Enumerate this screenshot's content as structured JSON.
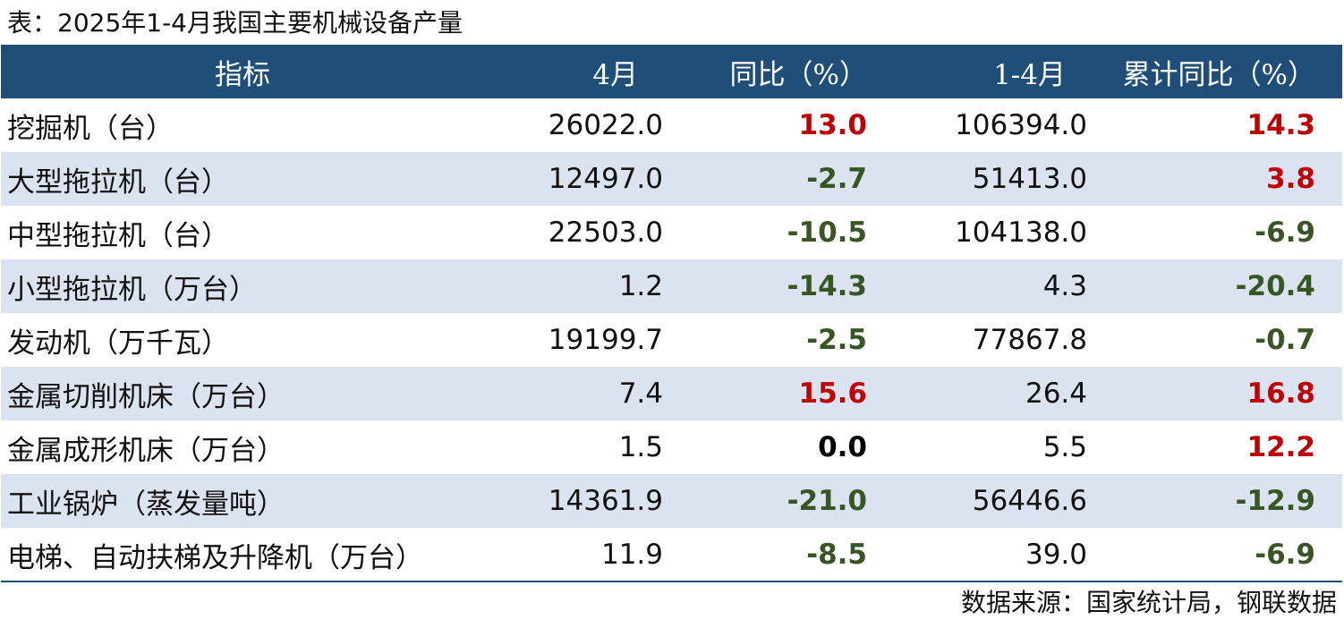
{
  "title": "表：2025年1-4月我国主要机械设备产量",
  "colors": {
    "header_bg": "#1f4e79",
    "header_text": "#ffffff",
    "row_alt_bg": "#dae3ef",
    "positive": "#c00000",
    "negative": "#375623",
    "zero": "#000000"
  },
  "chart_data": {
    "type": "table",
    "title": "表：2025年1-4月我国主要机械设备产量",
    "columns": [
      "指标",
      "4月",
      "同比（%）",
      "1-4月",
      "累计同比（%）"
    ],
    "rows": [
      {
        "name": "挖掘机（台）",
        "april": "26022.0",
        "yoy": "13.0",
        "ytd": "106394.0",
        "ytd_yoy": "14.3",
        "yoy_tone": "positive",
        "ytd_yoy_tone": "positive"
      },
      {
        "name": "大型拖拉机（台）",
        "april": "12497.0",
        "yoy": "-2.7",
        "ytd": "51413.0",
        "ytd_yoy": "3.8",
        "yoy_tone": "negative",
        "ytd_yoy_tone": "positive"
      },
      {
        "name": "中型拖拉机（台）",
        "april": "22503.0",
        "yoy": "-10.5",
        "ytd": "104138.0",
        "ytd_yoy": "-6.9",
        "yoy_tone": "negative",
        "ytd_yoy_tone": "negative"
      },
      {
        "name": "小型拖拉机（万台）",
        "april": "1.2",
        "yoy": "-14.3",
        "ytd": "4.3",
        "ytd_yoy": "-20.4",
        "yoy_tone": "negative",
        "ytd_yoy_tone": "negative"
      },
      {
        "name": "发动机（万千瓦）",
        "april": "19199.7",
        "yoy": "-2.5",
        "ytd": "77867.8",
        "ytd_yoy": "-0.7",
        "yoy_tone": "negative",
        "ytd_yoy_tone": "negative"
      },
      {
        "name": "金属切削机床（万台）",
        "april": "7.4",
        "yoy": "15.6",
        "ytd": "26.4",
        "ytd_yoy": "16.8",
        "yoy_tone": "positive",
        "ytd_yoy_tone": "positive"
      },
      {
        "name": "金属成形机床（万台）",
        "april": "1.5",
        "yoy": "0.0",
        "ytd": "5.5",
        "ytd_yoy": "12.2",
        "yoy_tone": "zero",
        "ytd_yoy_tone": "positive"
      },
      {
        "name": "工业锅炉（蒸发量吨）",
        "april": "14361.9",
        "yoy": "-21.0",
        "ytd": "56446.6",
        "ytd_yoy": "-12.9",
        "yoy_tone": "negative",
        "ytd_yoy_tone": "negative"
      },
      {
        "name": "电梯、自动扶梯及升降机（万台）",
        "april": "11.9",
        "yoy": "-8.5",
        "ytd": "39.0",
        "ytd_yoy": "-6.9",
        "yoy_tone": "negative",
        "ytd_yoy_tone": "negative"
      }
    ]
  },
  "source": "数据来源：国家统计局，钢联数据"
}
